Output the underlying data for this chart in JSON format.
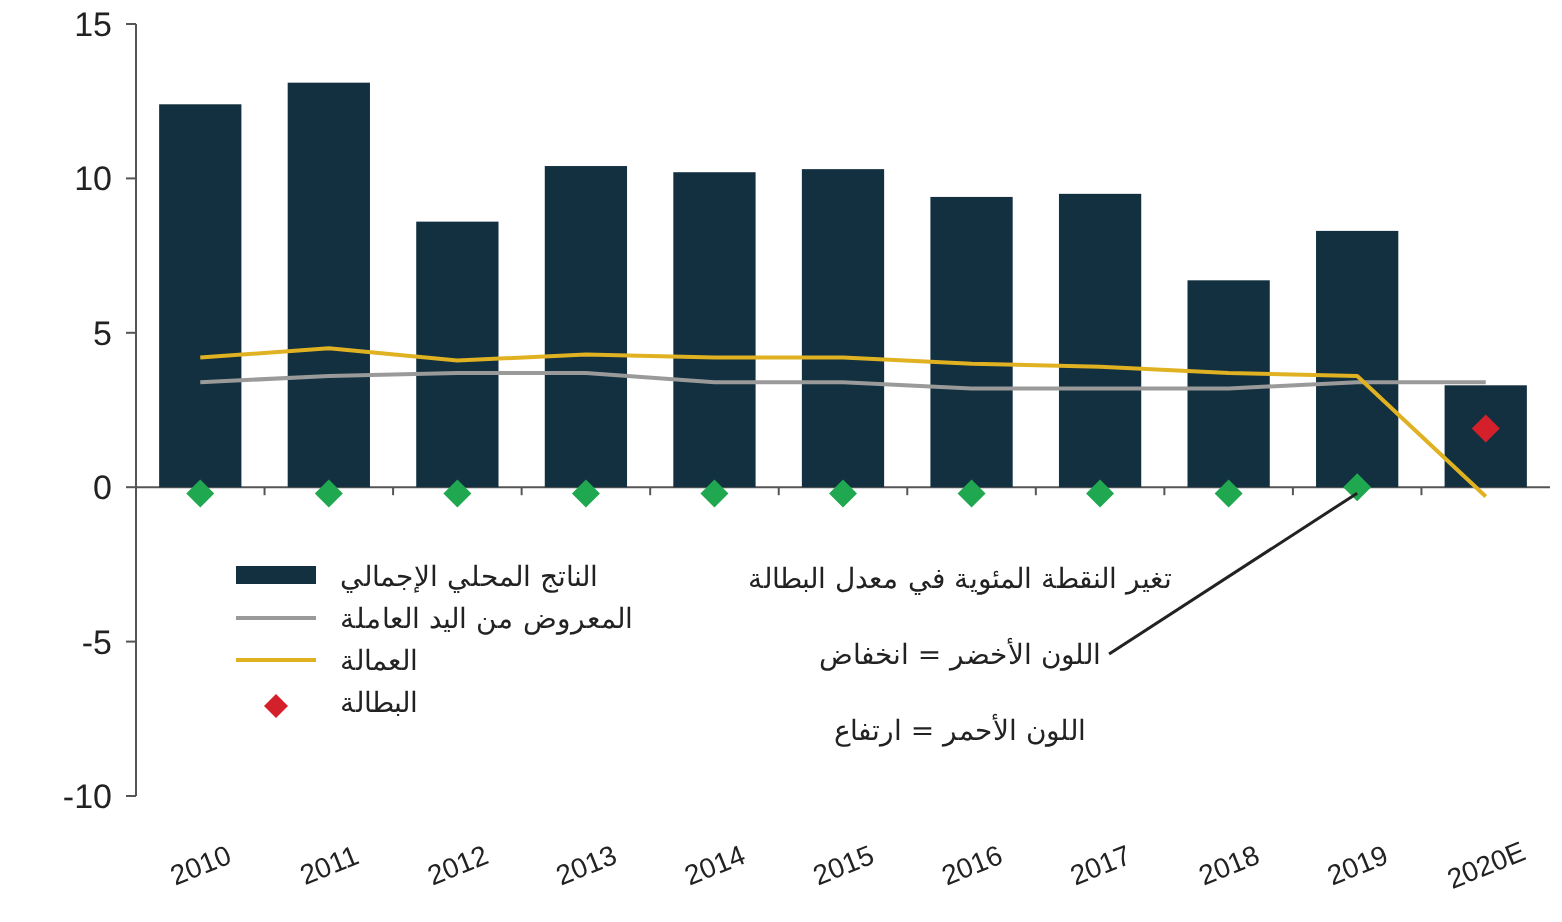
{
  "chart_data": {
    "type": "bar",
    "categories": [
      "2010",
      "2011",
      "2012",
      "2013",
      "2014",
      "2015",
      "2016",
      "2017",
      "2018",
      "2019",
      "2020E"
    ],
    "series": [
      {
        "name": "الناتج المحلي الإجمالي",
        "color": "#12303f",
        "values": [
          12.4,
          13.1,
          8.6,
          10.4,
          10.2,
          10.3,
          9.4,
          9.5,
          6.7,
          8.3,
          3.3
        ]
      },
      {
        "name": "المعروض من اليد العاملة",
        "type": "line",
        "color": "#9a9a9a",
        "values": [
          3.4,
          3.6,
          3.7,
          3.7,
          3.4,
          3.4,
          3.2,
          3.2,
          3.2,
          3.4,
          3.4
        ]
      },
      {
        "name": "العمالة",
        "type": "line",
        "color": "#e0b222",
        "values": [
          4.2,
          4.5,
          4.1,
          4.3,
          4.2,
          4.2,
          4.0,
          3.9,
          3.7,
          3.6,
          -0.3
        ]
      },
      {
        "name": "البطالة",
        "type": "scatter",
        "marker": "diamond",
        "color": "#d4202a",
        "colors": [
          "#1fa84f",
          "#1fa84f",
          "#1fa84f",
          "#1fa84f",
          "#1fa84f",
          "#1fa84f",
          "#1fa84f",
          "#1fa84f",
          "#1fa84f",
          "#1fa84f",
          "#d4202a"
        ],
        "values": [
          -0.2,
          -0.2,
          -0.2,
          -0.2,
          -0.2,
          -0.2,
          -0.2,
          -0.2,
          -0.2,
          0,
          1.9
        ]
      }
    ],
    "ylim": [
      -10,
      15
    ],
    "yticks": [
      -10,
      -5,
      0,
      5,
      10,
      15
    ],
    "legend": "bottom left",
    "annotations": [
      "تغير النقطة المئوية في معدل البطالة",
      {
        "text": "اللون الأخضر = انخفاض",
        "x": "2019",
        "y": 0
      },
      "اللون الأحمر = ارتفاع"
    ]
  }
}
